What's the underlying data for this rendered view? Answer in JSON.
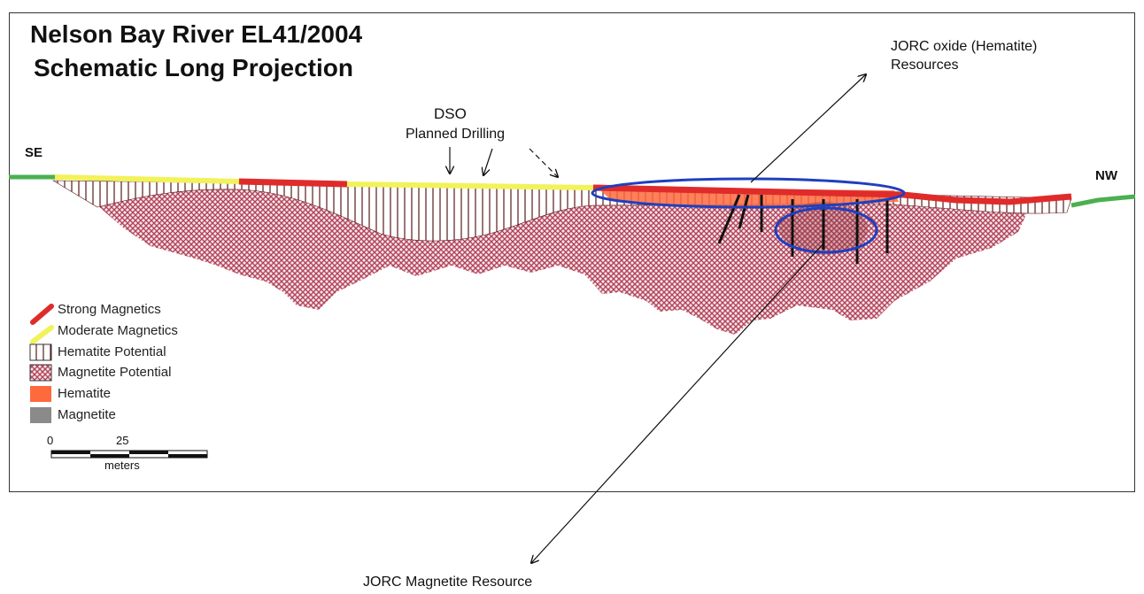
{
  "title": {
    "line1": "Nelson Bay River EL41/2004",
    "line2": "Schematic Long Projection"
  },
  "annotations": {
    "dso": "DSO",
    "planned_drilling": "Planned Drilling",
    "jorc_oxide_line1": "JORC oxide (Hematite)",
    "jorc_oxide_line2": "Resources",
    "jorc_magnetite": "JORC Magnetite Resource"
  },
  "directions": {
    "left": "SE",
    "right": "NW"
  },
  "legend": [
    {
      "label": "Strong Magnetics",
      "icon": "strong-magnetics-line",
      "color": "#e02b2b"
    },
    {
      "label": "Moderate Magnetics",
      "icon": "moderate-magnetics-line",
      "color": "#f2f25a"
    },
    {
      "label": "Hematite Potential",
      "icon": "vertical-hatch",
      "color": "#5a1a1a"
    },
    {
      "label": "Magnetite Potential",
      "icon": "crosshatch",
      "color": "#b2445a"
    },
    {
      "label": "Hematite",
      "icon": "solid-swatch",
      "color": "#ff6a3d"
    },
    {
      "label": "Magnetite",
      "icon": "solid-swatch",
      "color": "#8a8a8a"
    }
  ],
  "scale": {
    "zero": "0",
    "mid": "25",
    "unit": "meters"
  },
  "colors": {
    "surface_green": "#4caf50",
    "strong": "#e02b2b",
    "moderate": "#f2f25a",
    "hatch": "#5a1a1a",
    "magnetite_potential": "#b2445a",
    "hematite": "#ff6a3d",
    "ellipse": "#1f3fc0"
  }
}
